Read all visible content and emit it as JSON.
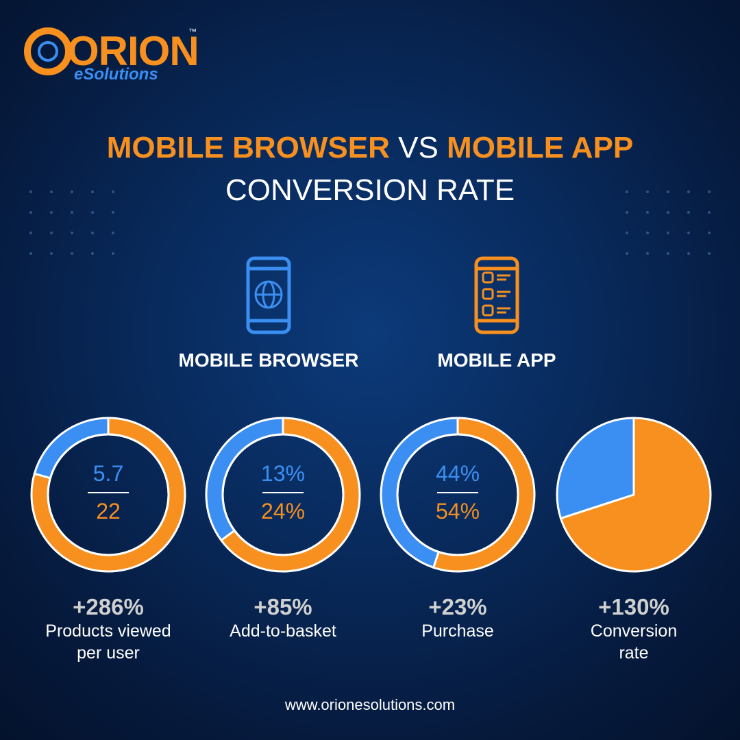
{
  "logo": {
    "name": "ORION",
    "trademark": "™",
    "tagline": "eSolutions"
  },
  "title": {
    "part1": "MOBILE BROWSER",
    "part2": "VS",
    "part3": "MOBILE APP",
    "line2": "CONVERSION RATE"
  },
  "legend": [
    {
      "label": "MOBILE BROWSER",
      "color": "#3b8ff2"
    },
    {
      "label": "MOBILE APP",
      "color": "#f7901e"
    }
  ],
  "chart_data": [
    {
      "type": "donut",
      "values": [
        5.7,
        22
      ],
      "value_labels": [
        "5.7",
        "22"
      ],
      "colors": [
        "#3b8ff2",
        "#f7901e"
      ],
      "change": "+286%",
      "caption": "Products viewed per user"
    },
    {
      "type": "donut",
      "values": [
        13,
        24
      ],
      "value_labels": [
        "13%",
        "24%"
      ],
      "colors": [
        "#3b8ff2",
        "#f7901e"
      ],
      "change": "+85%",
      "caption": "Add-to-basket"
    },
    {
      "type": "donut",
      "values": [
        44,
        54
      ],
      "value_labels": [
        "44%",
        "54%"
      ],
      "colors": [
        "#3b8ff2",
        "#f7901e"
      ],
      "change": "+23%",
      "caption": "Purchase"
    },
    {
      "type": "pie",
      "values": [
        30,
        70
      ],
      "colors": [
        "#3b8ff2",
        "#f7901e"
      ],
      "change": "+130%",
      "caption": "Conversion rate"
    }
  ],
  "footer": "www.orionesolutions.com"
}
